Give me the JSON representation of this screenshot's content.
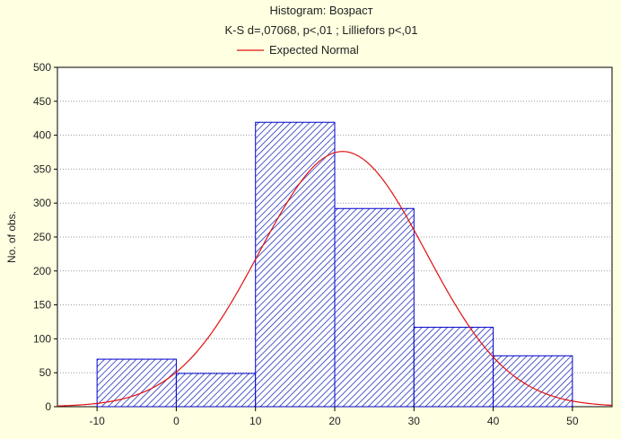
{
  "chart_data": {
    "type": "histogram",
    "title": "Histogram: Возраст",
    "subtitle": "K-S d=,07068, p<,01 ; Lilliefors p<,01",
    "xlabel": "",
    "ylabel": "No. of obs.",
    "xlim": [
      -15,
      55
    ],
    "ylim": [
      0,
      500
    ],
    "x_ticks": [
      -10,
      0,
      10,
      20,
      30,
      40,
      50
    ],
    "y_ticks": [
      0,
      50,
      100,
      150,
      200,
      250,
      300,
      350,
      400,
      450,
      500
    ],
    "grid": "horizontal-dotted",
    "legend_position": "top-center",
    "bins": [
      {
        "from": -10,
        "to": 0,
        "value": 70
      },
      {
        "from": 0,
        "to": 10,
        "value": 49
      },
      {
        "from": 10,
        "to": 20,
        "value": 419
      },
      {
        "from": 20,
        "to": 30,
        "value": 292
      },
      {
        "from": 30,
        "to": 40,
        "value": 117
      },
      {
        "from": 40,
        "to": 50,
        "value": 75
      }
    ],
    "series": [
      {
        "name": "Expected Normal",
        "type": "line",
        "mean": 21,
        "sd": 10.5,
        "peak": 376
      }
    ],
    "colors": {
      "bar_stroke": "#0000cc",
      "bar_hatch": "#2233bb",
      "bar_fill": "#ffffff",
      "curve": "#e01010",
      "plot_bg": "#ffffff",
      "page_bg": "#ffffe1",
      "grid": "#9a9a9a"
    }
  }
}
